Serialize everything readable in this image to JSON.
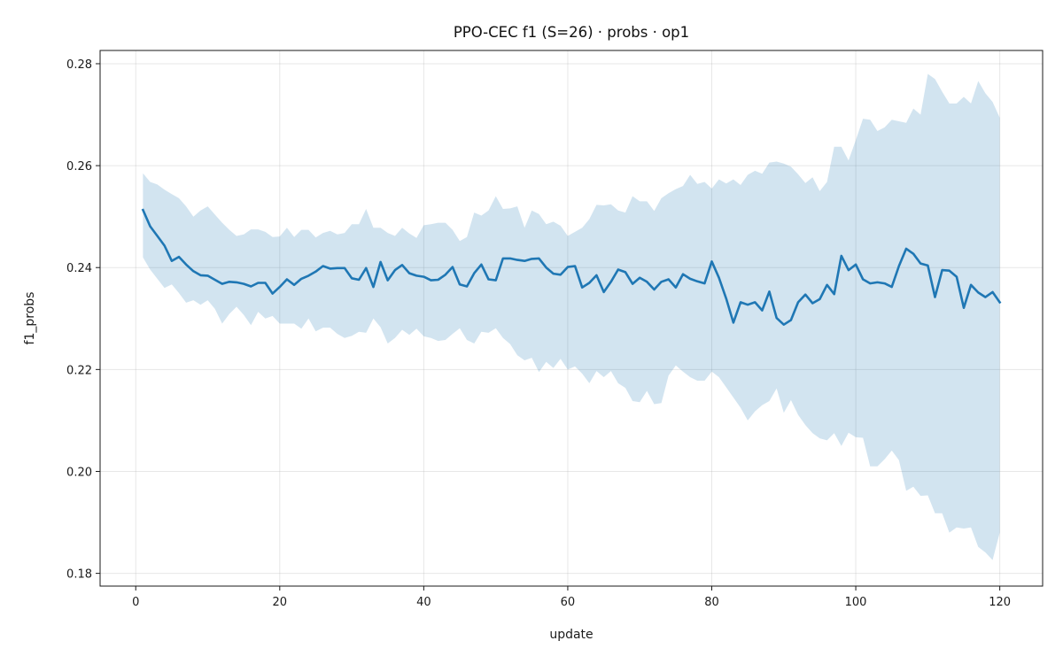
{
  "chart_data": {
    "type": "line",
    "title": "PPO-CEC f1 (S=26) · probs · op1",
    "xlabel": "update",
    "ylabel": "f1_probs",
    "xlim": [
      -4.95,
      125.95
    ],
    "ylim": [
      0.1775,
      0.2826
    ],
    "xticks": [
      0,
      20,
      40,
      60,
      80,
      100,
      120
    ],
    "yticks": [
      0.18,
      0.2,
      0.22,
      0.24,
      0.26,
      0.28
    ],
    "grid": true,
    "legend": "none",
    "series": [
      {
        "color": "#1f77b4",
        "band_color": "#1f77b4",
        "band_alpha": 0.2,
        "x": [
          1,
          2,
          3,
          4,
          5,
          6,
          7,
          8,
          9,
          10,
          11,
          12,
          13,
          14,
          15,
          16,
          17,
          18,
          19,
          20,
          21,
          22,
          23,
          24,
          25,
          26,
          27,
          28,
          29,
          30,
          31,
          32,
          33,
          34,
          35,
          36,
          37,
          38,
          39,
          40,
          41,
          42,
          43,
          44,
          45,
          46,
          47,
          48,
          49,
          50,
          51,
          52,
          53,
          54,
          55,
          56,
          57,
          58,
          59,
          60,
          61,
          62,
          63,
          64,
          65,
          66,
          67,
          68,
          69,
          70,
          71,
          72,
          73,
          74,
          75,
          76,
          77,
          78,
          79,
          80,
          81,
          82,
          83,
          84,
          85,
          86,
          87,
          88,
          89,
          90,
          91,
          92,
          93,
          94,
          95,
          96,
          97,
          98,
          99,
          100,
          101,
          102,
          103,
          104,
          105,
          106,
          107,
          108,
          109,
          110,
          111,
          112,
          113,
          114,
          115,
          116,
          117,
          118,
          119,
          120
        ],
        "mean": [
          0.2513,
          0.2481,
          0.2462,
          0.2443,
          0.2413,
          0.2421,
          0.2406,
          0.2393,
          0.2385,
          0.2384,
          0.2376,
          0.2368,
          0.2372,
          0.2371,
          0.2368,
          0.2363,
          0.237,
          0.237,
          0.2349,
          0.2362,
          0.2377,
          0.2366,
          0.2378,
          0.2384,
          0.2392,
          0.2403,
          0.2398,
          0.2399,
          0.2399,
          0.2379,
          0.2376,
          0.2399,
          0.2362,
          0.2411,
          0.2375,
          0.2395,
          0.2405,
          0.2389,
          0.2384,
          0.2382,
          0.2375,
          0.2376,
          0.2386,
          0.2401,
          0.2367,
          0.2363,
          0.2389,
          0.2406,
          0.2377,
          0.2375,
          0.2418,
          0.2418,
          0.2415,
          0.2413,
          0.2417,
          0.2418,
          0.24,
          0.2388,
          0.2386,
          0.2401,
          0.2403,
          0.2361,
          0.237,
          0.2385,
          0.2352,
          0.2372,
          0.2396,
          0.2391,
          0.2368,
          0.238,
          0.2372,
          0.2357,
          0.2372,
          0.2377,
          0.2361,
          0.2387,
          0.2378,
          0.2373,
          0.2369,
          0.2412,
          0.238,
          0.2339,
          0.2292,
          0.2332,
          0.2327,
          0.2332,
          0.2316,
          0.2353,
          0.2301,
          0.2288,
          0.2297,
          0.2332,
          0.2347,
          0.233,
          0.2338,
          0.2366,
          0.2348,
          0.2423,
          0.2395,
          0.2406,
          0.2377,
          0.2369,
          0.2371,
          0.2369,
          0.2362,
          0.2403,
          0.2437,
          0.2427,
          0.2408,
          0.2404,
          0.2342,
          0.2395,
          0.2394,
          0.2382,
          0.2321,
          0.2366,
          0.2351,
          0.2342,
          0.2352,
          0.2332
        ],
        "upper": [
          0.2585,
          0.2568,
          0.2563,
          0.2553,
          0.2544,
          0.2536,
          0.252,
          0.25,
          0.2512,
          0.252,
          0.2504,
          0.2488,
          0.2474,
          0.2462,
          0.2465,
          0.2475,
          0.2475,
          0.247,
          0.246,
          0.2461,
          0.2478,
          0.246,
          0.2474,
          0.2474,
          0.2459,
          0.2468,
          0.2472,
          0.2465,
          0.2468,
          0.2485,
          0.2485,
          0.2515,
          0.2478,
          0.2478,
          0.2468,
          0.2462,
          0.2478,
          0.2467,
          0.2458,
          0.2483,
          0.2485,
          0.2488,
          0.2488,
          0.2474,
          0.2452,
          0.246,
          0.2508,
          0.2502,
          0.2512,
          0.254,
          0.2515,
          0.2516,
          0.252,
          0.2478,
          0.2512,
          0.2505,
          0.2485,
          0.249,
          0.2482,
          0.2462,
          0.247,
          0.2478,
          0.2495,
          0.2523,
          0.2522,
          0.2524,
          0.2512,
          0.2508,
          0.254,
          0.253,
          0.253,
          0.2511,
          0.2536,
          0.2546,
          0.2554,
          0.256,
          0.2582,
          0.2564,
          0.2568,
          0.2555,
          0.2573,
          0.2565,
          0.2573,
          0.2562,
          0.2582,
          0.259,
          0.2584,
          0.2606,
          0.2608,
          0.2604,
          0.2598,
          0.2583,
          0.2566,
          0.2577,
          0.255,
          0.2568,
          0.2637,
          0.2637,
          0.261,
          0.265,
          0.2692,
          0.269,
          0.2668,
          0.2675,
          0.269,
          0.2687,
          0.2684,
          0.2712,
          0.27,
          0.278,
          0.277,
          0.2745,
          0.2722,
          0.2722,
          0.2735,
          0.2722,
          0.2766,
          0.2742,
          0.2725,
          0.2694
        ],
        "lower": [
          0.242,
          0.2396,
          0.2378,
          0.236,
          0.2367,
          0.235,
          0.2331,
          0.2336,
          0.2327,
          0.2336,
          0.2319,
          0.229,
          0.2309,
          0.2323,
          0.2307,
          0.2287,
          0.2313,
          0.23,
          0.2305,
          0.229,
          0.229,
          0.229,
          0.228,
          0.23,
          0.2275,
          0.2282,
          0.2282,
          0.227,
          0.2262,
          0.2266,
          0.2274,
          0.2272,
          0.23,
          0.2283,
          0.2251,
          0.2262,
          0.2278,
          0.2268,
          0.228,
          0.2265,
          0.2262,
          0.2256,
          0.2258,
          0.227,
          0.2281,
          0.2258,
          0.2251,
          0.2274,
          0.2272,
          0.2281,
          0.2262,
          0.225,
          0.2228,
          0.2218,
          0.2223,
          0.2195,
          0.2215,
          0.2203,
          0.2221,
          0.22,
          0.2206,
          0.2192,
          0.2173,
          0.2197,
          0.2185,
          0.2197,
          0.2173,
          0.2164,
          0.2138,
          0.2136,
          0.2158,
          0.2132,
          0.2134,
          0.2188,
          0.2208,
          0.2196,
          0.2185,
          0.2178,
          0.2178,
          0.2196,
          0.2185,
          0.2165,
          0.2145,
          0.2125,
          0.21,
          0.2118,
          0.213,
          0.2138,
          0.2163,
          0.2115,
          0.214,
          0.2111,
          0.2091,
          0.2075,
          0.2065,
          0.2061,
          0.2075,
          0.205,
          0.2076,
          0.2067,
          0.2066,
          0.201,
          0.201,
          0.2024,
          0.2041,
          0.2022,
          0.1962,
          0.197,
          0.1952,
          0.1953,
          0.1918,
          0.1918,
          0.188,
          0.189,
          0.1888,
          0.189,
          0.1852,
          0.1841,
          0.1826,
          0.188
        ]
      }
    ]
  }
}
